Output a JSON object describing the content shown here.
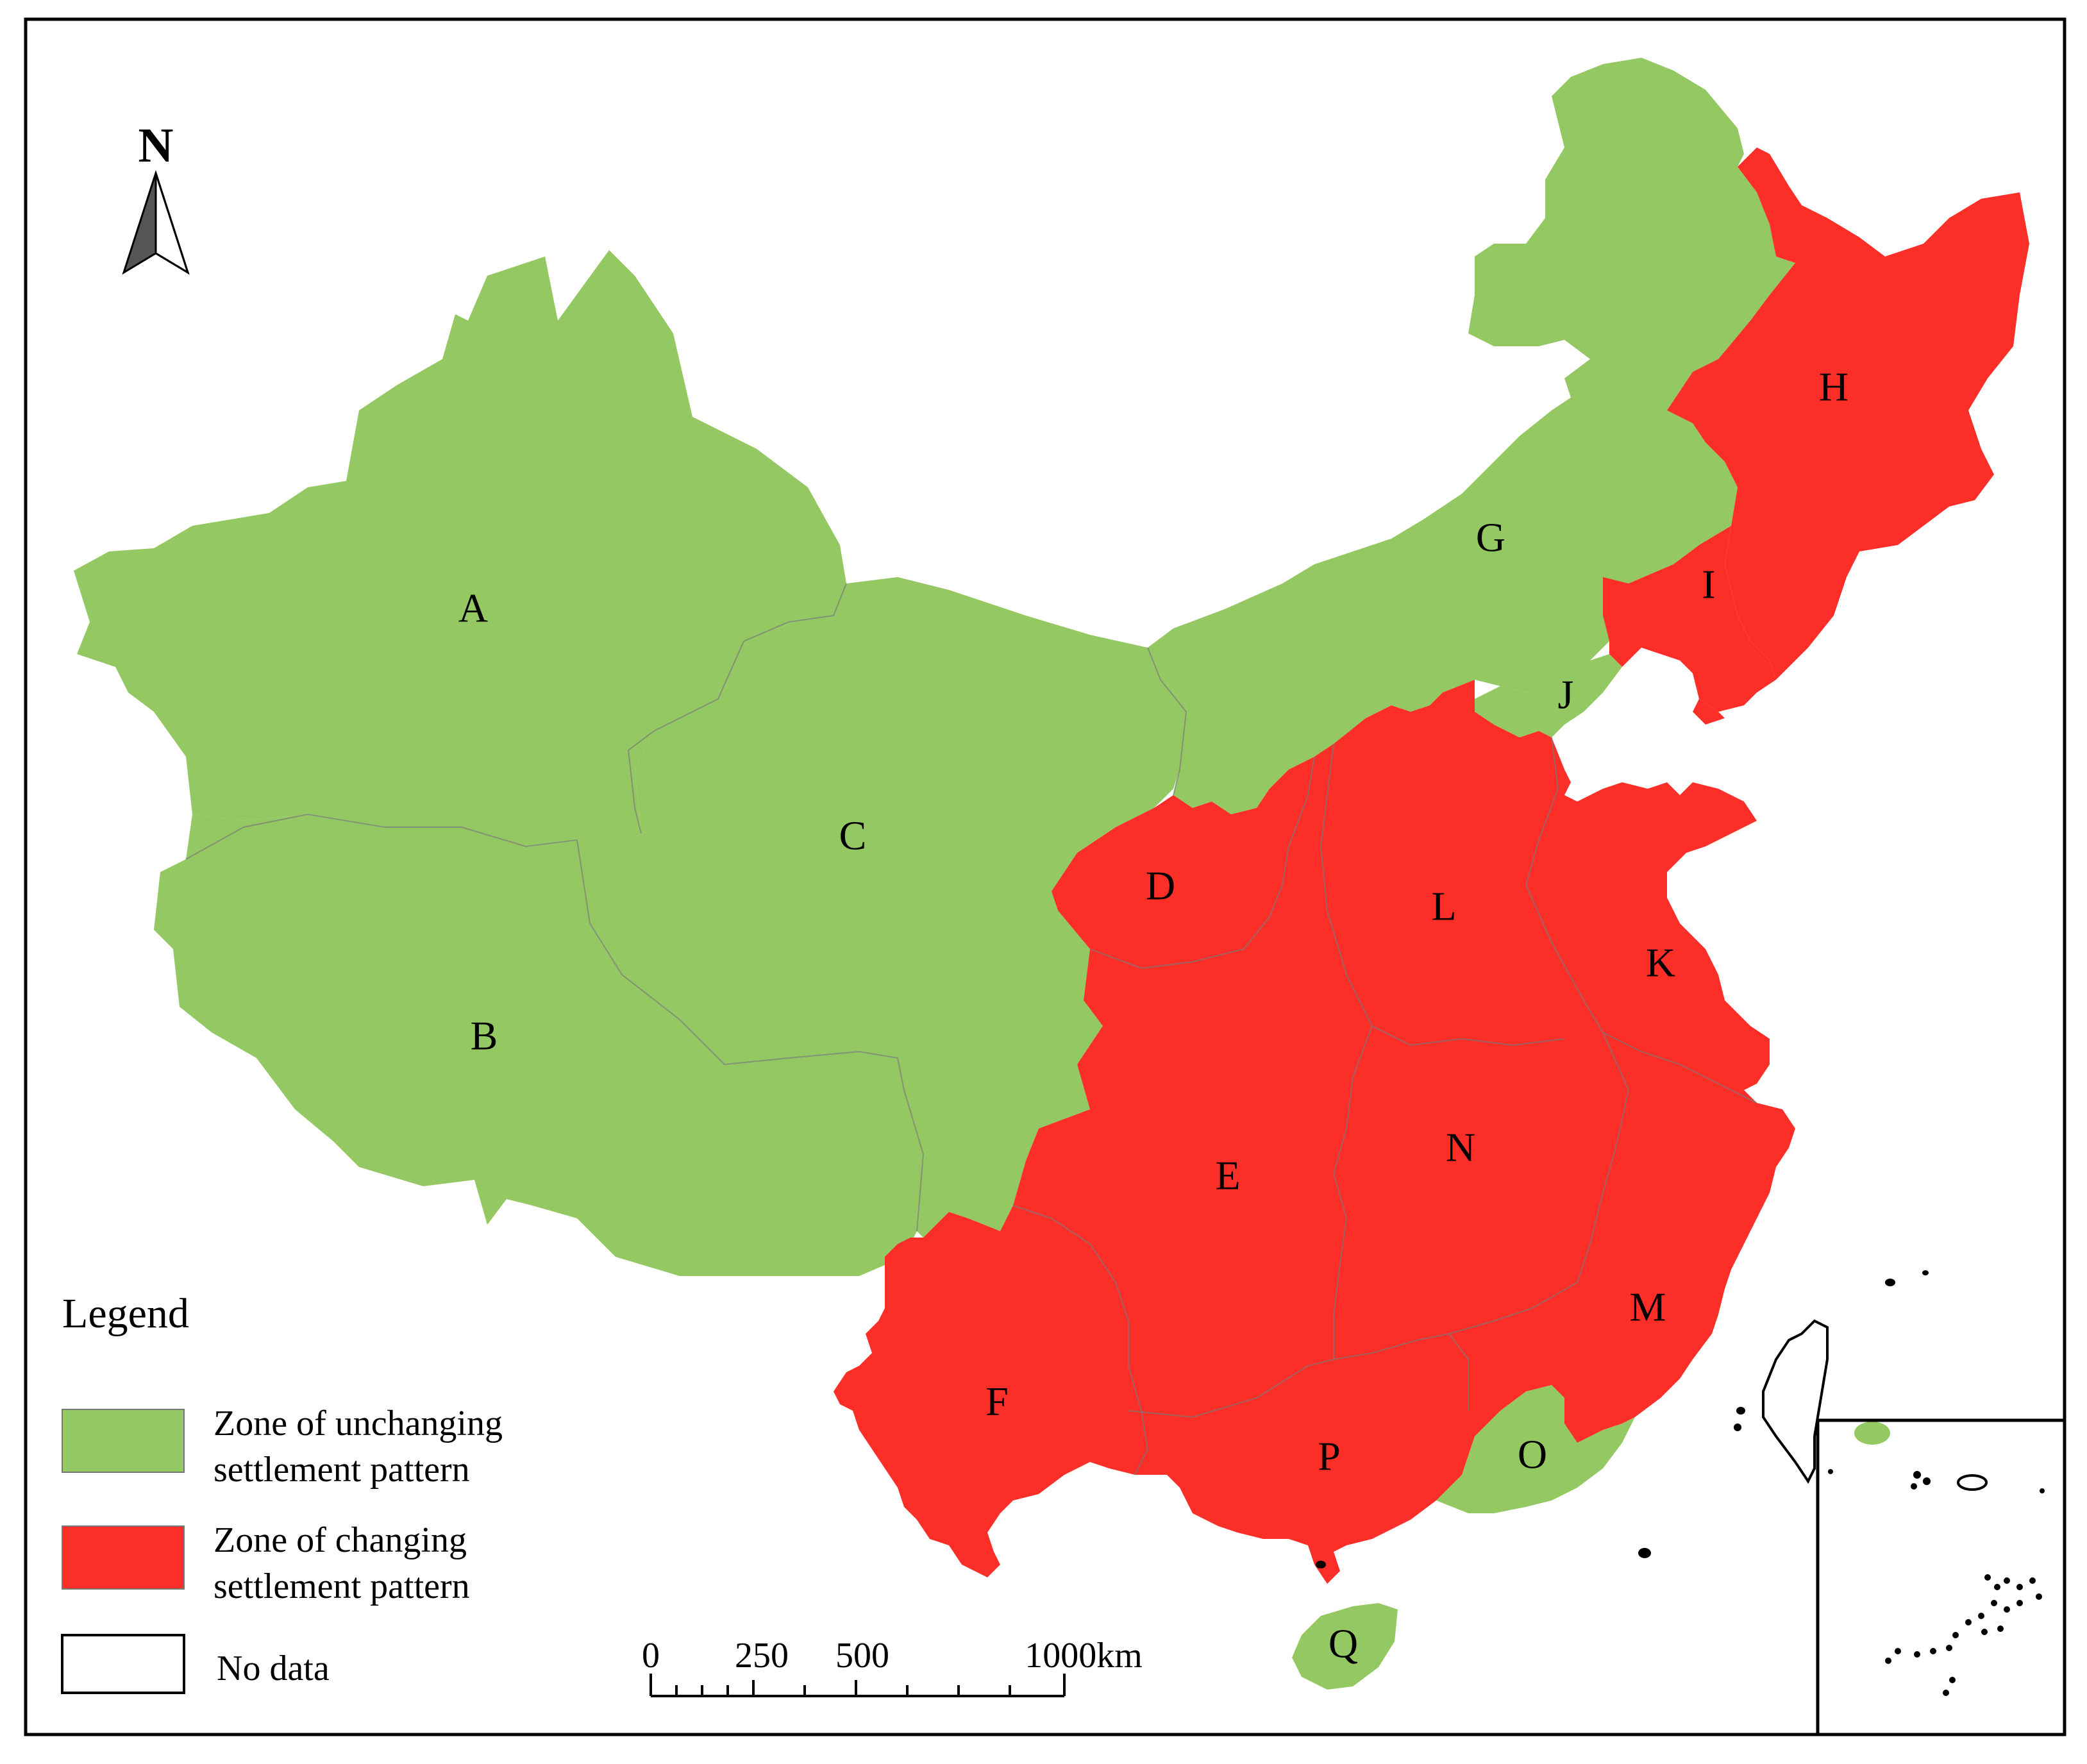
{
  "map": {
    "north_label": "N",
    "colors": {
      "unchanging": "#94c862",
      "changing": "#fb2e28",
      "no_data": "#ffffff"
    },
    "regions": [
      {
        "id": "A",
        "zone": "unchanging"
      },
      {
        "id": "B",
        "zone": "unchanging"
      },
      {
        "id": "C",
        "zone": "unchanging"
      },
      {
        "id": "D",
        "zone": "changing"
      },
      {
        "id": "E",
        "zone": "changing"
      },
      {
        "id": "F",
        "zone": "changing"
      },
      {
        "id": "G",
        "zone": "unchanging"
      },
      {
        "id": "H",
        "zone": "changing"
      },
      {
        "id": "I",
        "zone": "changing"
      },
      {
        "id": "J",
        "zone": "unchanging"
      },
      {
        "id": "K",
        "zone": "changing"
      },
      {
        "id": "L",
        "zone": "changing"
      },
      {
        "id": "M",
        "zone": "changing"
      },
      {
        "id": "N",
        "zone": "changing"
      },
      {
        "id": "O",
        "zone": "unchanging"
      },
      {
        "id": "P",
        "zone": "changing"
      },
      {
        "id": "Q",
        "zone": "unchanging"
      }
    ]
  },
  "legend": {
    "title": "Legend",
    "items": [
      {
        "line1": "Zone of unchanging",
        "line2": "settlement pattern",
        "zone": "unchanging"
      },
      {
        "line1": "Zone of changing",
        "line2": "settlement pattern",
        "zone": "changing"
      },
      {
        "line1": "No data",
        "line2": "",
        "zone": "no_data"
      }
    ]
  },
  "scale_bar": {
    "ticks": [
      "0",
      "250",
      "500",
      "1000km"
    ]
  }
}
